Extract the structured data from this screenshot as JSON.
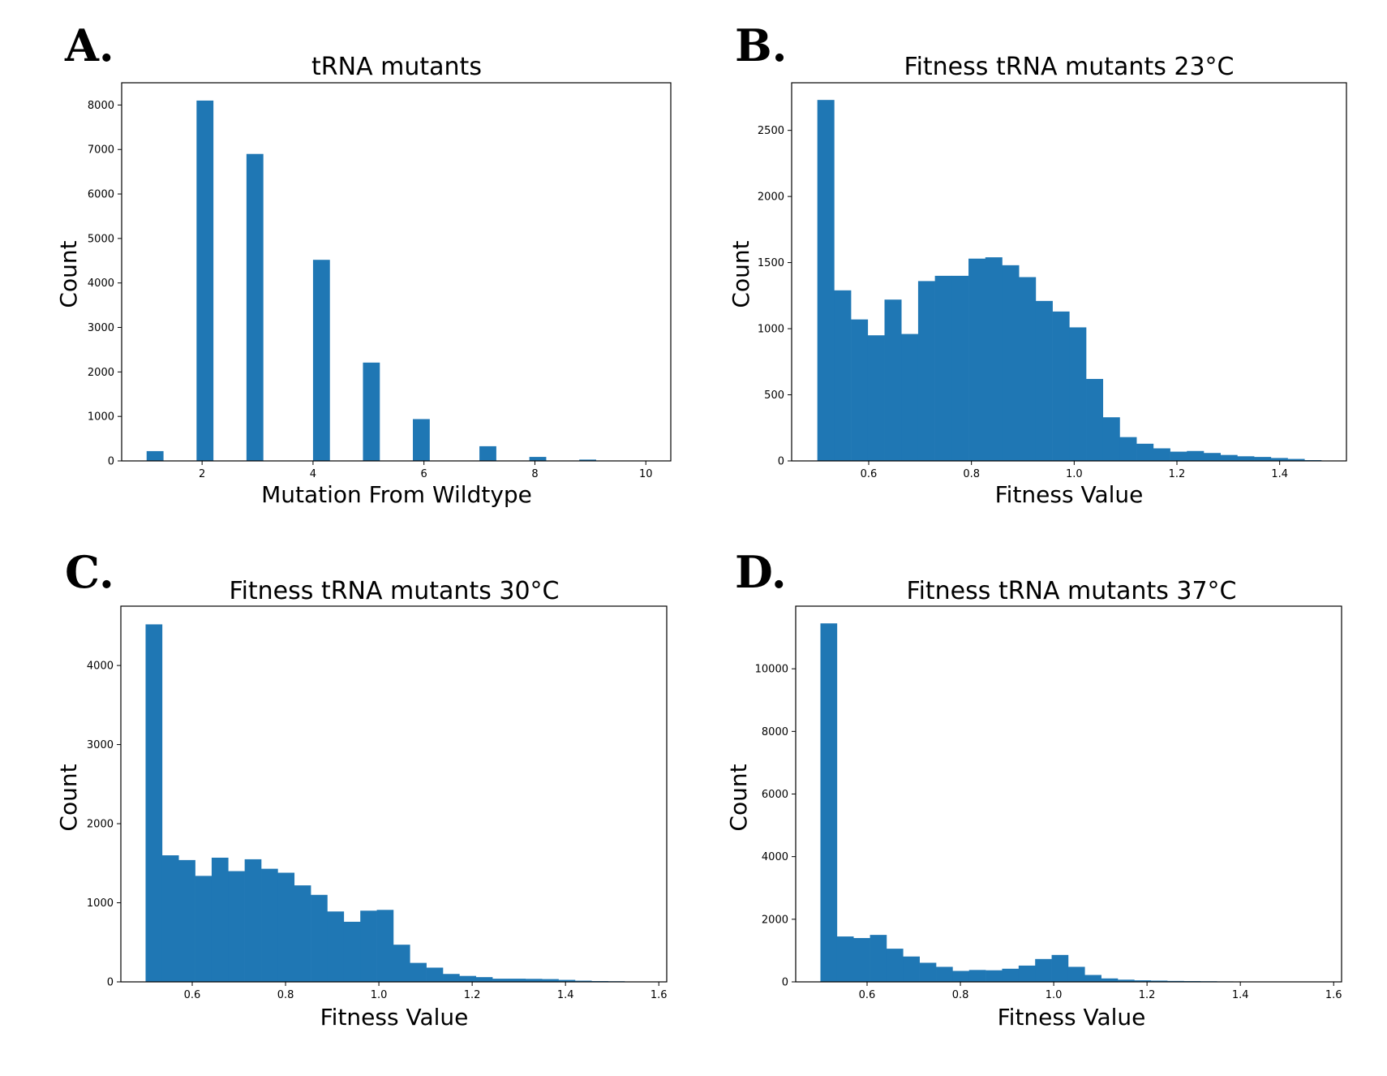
{
  "chart_data": [
    {
      "id": "A",
      "type": "bar",
      "panel_letter": "A.",
      "title": "tRNA mutants",
      "xlabel": "Mutation From Wildtype",
      "ylabel": "Count",
      "xlim": [
        0.55,
        10.45
      ],
      "ylim": [
        0,
        8500
      ],
      "xticks": [
        2,
        4,
        6,
        8,
        10
      ],
      "xtick_labels": [
        "2",
        "4",
        "6",
        "8",
        "10"
      ],
      "yticks": [
        0,
        1000,
        2000,
        3000,
        4000,
        5000,
        6000,
        7000,
        8000
      ],
      "ytick_labels": [
        "0",
        "1000",
        "2000",
        "3000",
        "4000",
        "5000",
        "6000",
        "7000",
        "8000"
      ],
      "bin_width": 0.3,
      "x": [
        1.0,
        1.9,
        2.8,
        4.0,
        4.9,
        5.8,
        7.0,
        7.9,
        8.8
      ],
      "values": [
        220,
        8100,
        6900,
        4520,
        2210,
        940,
        330,
        90,
        30
      ],
      "color": "#1f77b4"
    },
    {
      "id": "B",
      "type": "bar",
      "panel_letter": "B.",
      "title": "Fitness tRNA mutants 23°C",
      "xlabel": "Fitness Value",
      "ylabel": "Count",
      "xlim": [
        0.45,
        1.53
      ],
      "ylim": [
        0,
        2860
      ],
      "xticks": [
        0.6,
        0.8,
        1.0,
        1.2,
        1.4
      ],
      "xtick_labels": [
        "0.6",
        "0.8",
        "1.0",
        "1.2",
        "1.4"
      ],
      "yticks": [
        0,
        500,
        1000,
        1500,
        2000,
        2500
      ],
      "ytick_labels": [
        "0",
        "500",
        "1000",
        "1500",
        "2000",
        "2500"
      ],
      "bin_start": 0.5,
      "bin_width": 0.0327,
      "values": [
        2730,
        1290,
        1070,
        950,
        1220,
        960,
        1360,
        1400,
        1400,
        1530,
        1540,
        1480,
        1390,
        1210,
        1130,
        1010,
        620,
        330,
        180,
        130,
        95,
        70,
        75,
        60,
        45,
        35,
        30,
        22,
        15,
        6
      ],
      "color": "#1f77b4"
    },
    {
      "id": "C",
      "type": "bar",
      "panel_letter": "C.",
      "title": "Fitness tRNA mutants 30°C",
      "xlabel": "Fitness Value",
      "ylabel": "Count",
      "xlim": [
        0.447,
        1.617
      ],
      "ylim": [
        0,
        4750
      ],
      "xticks": [
        0.6,
        0.8,
        1.0,
        1.2,
        1.4,
        1.6
      ],
      "xtick_labels": [
        "0.6",
        "0.8",
        "1.0",
        "1.2",
        "1.4",
        "1.6"
      ],
      "yticks": [
        0,
        1000,
        2000,
        3000,
        4000
      ],
      "ytick_labels": [
        "0",
        "1000",
        "2000",
        "3000",
        "4000"
      ],
      "bin_start": 0.5,
      "bin_width": 0.0354,
      "values": [
        4520,
        1600,
        1540,
        1340,
        1570,
        1400,
        1550,
        1430,
        1380,
        1220,
        1100,
        890,
        760,
        900,
        910,
        470,
        240,
        180,
        100,
        75,
        60,
        40,
        40,
        38,
        35,
        25,
        15,
        10,
        8,
        5
      ],
      "color": "#1f77b4"
    },
    {
      "id": "D",
      "type": "bar",
      "panel_letter": "D.",
      "title": "Fitness tRNA mutants 37°C",
      "xlabel": "Fitness Value",
      "ylabel": "Count",
      "xlim": [
        0.447,
        1.617
      ],
      "ylim": [
        0,
        12000
      ],
      "xticks": [
        0.6,
        0.8,
        1.0,
        1.2,
        1.4,
        1.6
      ],
      "xtick_labels": [
        "0.6",
        "0.8",
        "1.0",
        "1.2",
        "1.4",
        "1.6"
      ],
      "yticks": [
        0,
        2000,
        4000,
        6000,
        8000,
        10000
      ],
      "ytick_labels": [
        "0",
        "2000",
        "4000",
        "6000",
        "8000",
        "10000"
      ],
      "bin_start": 0.5,
      "bin_width": 0.0354,
      "values": [
        11450,
        1450,
        1400,
        1500,
        1060,
        810,
        610,
        480,
        350,
        380,
        370,
        420,
        520,
        730,
        860,
        480,
        220,
        110,
        70,
        50,
        40,
        30,
        25,
        20,
        15,
        10,
        8,
        5,
        3,
        2
      ],
      "color": "#1f77b4"
    }
  ]
}
